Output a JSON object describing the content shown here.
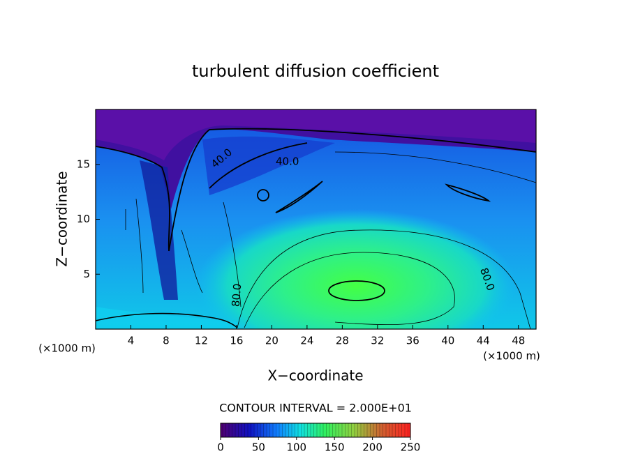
{
  "chart_data": {
    "type": "contour",
    "title": "turbulent diffusion coefficient",
    "x_label": "X−coordinate",
    "y_label": "Z−coordinate",
    "x_unit": "(×1000 m)",
    "y_unit": "(×1000 m)",
    "xlim": [
      0,
      50
    ],
    "xticks": [
      4,
      8,
      12,
      16,
      20,
      24,
      28,
      32,
      36,
      40,
      44,
      48
    ],
    "ylim": [
      0,
      20
    ],
    "yticks": [
      5,
      10,
      15
    ],
    "contour_labels": [
      "40.0",
      "40.0",
      "80.0",
      "80.0"
    ],
    "contour_interval": "CONTOUR INTERVAL = 2.000E+01",
    "colorbar": {
      "lim": [
        0,
        250
      ],
      "ticks": [
        0,
        50,
        100,
        150,
        200,
        250
      ]
    }
  }
}
